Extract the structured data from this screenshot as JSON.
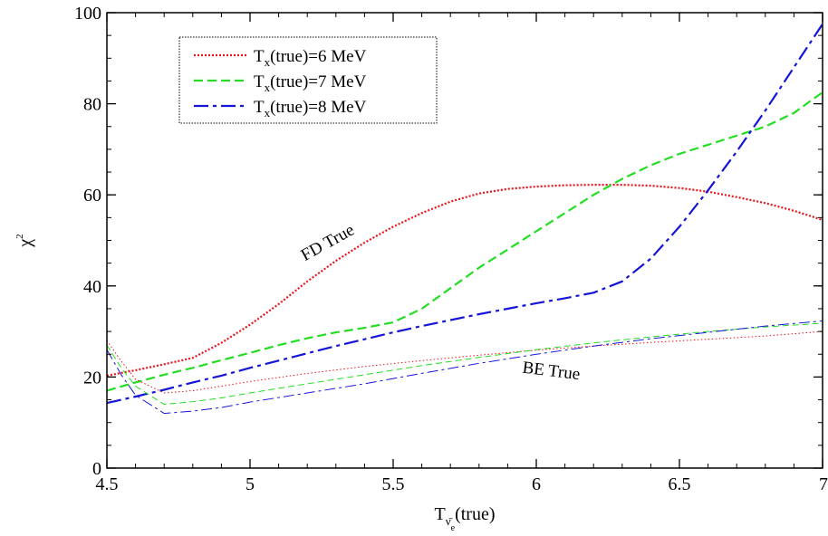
{
  "chart_data": {
    "type": "line",
    "xlabel": {
      "main": "T",
      "sub": "ν̄",
      "subsub": "e",
      "suffix": "(true)"
    },
    "ylabel": {
      "main": "χ",
      "sup": "2"
    },
    "xlim": [
      4.5,
      7
    ],
    "ylim": [
      0,
      100
    ],
    "xticks": [
      4.5,
      5,
      5.5,
      6,
      6.5,
      7
    ],
    "xtick_labels": [
      "4.5",
      "5",
      "5.5",
      "6",
      "6.5",
      "7"
    ],
    "yticks": [
      0,
      20,
      40,
      60,
      80,
      100
    ],
    "ytick_labels": [
      "0",
      "20",
      "40",
      "60",
      "80",
      "100"
    ],
    "grid": false,
    "legend_placement": "top-left",
    "legend": [
      {
        "label_main": "T",
        "label_sub": "x",
        "label_rest": "(true)=6 MeV",
        "color": "#e8141c",
        "dash": "dot"
      },
      {
        "label_main": "T",
        "label_sub": "x",
        "label_rest": "(true)=7 MeV",
        "color": "#22dd22",
        "dash": "dash"
      },
      {
        "label_main": "T",
        "label_sub": "x",
        "label_rest": "(true)=8 MeV",
        "color": "#1515d8",
        "dash": "dashdot"
      }
    ],
    "annotations": [
      {
        "text": "FD True",
        "x": 5.28,
        "y": 48.5,
        "rotate": -29
      },
      {
        "text": "BE True",
        "x": 6.05,
        "y": 20.2,
        "rotate": 7
      }
    ],
    "series": [
      {
        "color": "#e8141c",
        "dash": "dot",
        "weight": "thick",
        "points": [
          [
            4.5,
            20.3
          ],
          [
            4.6,
            21.5
          ],
          [
            4.7,
            22.8
          ],
          [
            4.8,
            24.2
          ],
          [
            4.9,
            27.5
          ],
          [
            5.0,
            31.5
          ],
          [
            5.1,
            36.0
          ],
          [
            5.2,
            41.0
          ],
          [
            5.3,
            45.5
          ],
          [
            5.4,
            49.5
          ],
          [
            5.5,
            53.0
          ],
          [
            5.6,
            56.0
          ],
          [
            5.7,
            58.5
          ],
          [
            5.8,
            60.3
          ],
          [
            5.9,
            61.3
          ],
          [
            6.0,
            61.8
          ],
          [
            6.1,
            62.1
          ],
          [
            6.2,
            62.2
          ],
          [
            6.3,
            62.2
          ],
          [
            6.4,
            62.0
          ],
          [
            6.5,
            61.5
          ],
          [
            6.6,
            60.7
          ],
          [
            6.7,
            59.5
          ],
          [
            6.8,
            58.2
          ],
          [
            6.9,
            56.5
          ],
          [
            7.0,
            54.5
          ]
        ]
      },
      {
        "color": "#22dd22",
        "dash": "dash",
        "weight": "thick",
        "points": [
          [
            4.5,
            17.0
          ],
          [
            4.6,
            18.8
          ],
          [
            4.7,
            20.5
          ],
          [
            4.8,
            22.0
          ],
          [
            4.9,
            23.7
          ],
          [
            5.0,
            25.3
          ],
          [
            5.1,
            27.0
          ],
          [
            5.2,
            28.5
          ],
          [
            5.3,
            29.8
          ],
          [
            5.4,
            30.8
          ],
          [
            5.5,
            32.0
          ],
          [
            5.6,
            35.0
          ],
          [
            5.7,
            39.5
          ],
          [
            5.8,
            44.0
          ],
          [
            5.9,
            48.0
          ],
          [
            6.0,
            52.0
          ],
          [
            6.1,
            56.0
          ],
          [
            6.2,
            60.0
          ],
          [
            6.3,
            63.5
          ],
          [
            6.4,
            66.5
          ],
          [
            6.5,
            69.0
          ],
          [
            6.6,
            71.0
          ],
          [
            6.7,
            73.0
          ],
          [
            6.8,
            75.0
          ],
          [
            6.9,
            78.0
          ],
          [
            7.0,
            82.5
          ]
        ]
      },
      {
        "color": "#1515d8",
        "dash": "dashdot",
        "weight": "thick",
        "points": [
          [
            4.5,
            14.3
          ],
          [
            4.6,
            15.7
          ],
          [
            4.7,
            17.2
          ],
          [
            4.8,
            18.8
          ],
          [
            4.9,
            20.3
          ],
          [
            5.0,
            22.0
          ],
          [
            5.1,
            23.6
          ],
          [
            5.2,
            25.2
          ],
          [
            5.3,
            26.8
          ],
          [
            5.4,
            28.3
          ],
          [
            5.5,
            29.8
          ],
          [
            5.6,
            31.2
          ],
          [
            5.7,
            32.5
          ],
          [
            5.8,
            33.8
          ],
          [
            5.9,
            35.0
          ],
          [
            6.0,
            36.2
          ],
          [
            6.1,
            37.3
          ],
          [
            6.2,
            38.5
          ],
          [
            6.3,
            41.0
          ],
          [
            6.4,
            46.0
          ],
          [
            6.5,
            53.0
          ],
          [
            6.6,
            61.0
          ],
          [
            6.7,
            69.5
          ],
          [
            6.8,
            78.5
          ],
          [
            6.9,
            88.0
          ],
          [
            7.0,
            97.5
          ]
        ]
      },
      {
        "color": "#e8141c",
        "dash": "dot",
        "weight": "thin",
        "points": [
          [
            4.5,
            28.0
          ],
          [
            4.55,
            23.5
          ],
          [
            4.6,
            19.5
          ],
          [
            4.7,
            16.5
          ],
          [
            4.8,
            17.0
          ],
          [
            4.9,
            18.0
          ],
          [
            5.0,
            19.0
          ],
          [
            5.2,
            20.8
          ],
          [
            5.4,
            22.3
          ],
          [
            5.6,
            23.6
          ],
          [
            5.8,
            24.8
          ],
          [
            6.0,
            25.9
          ],
          [
            6.2,
            26.8
          ],
          [
            6.4,
            27.6
          ],
          [
            6.6,
            28.3
          ],
          [
            6.8,
            29.0
          ],
          [
            7.0,
            30.0
          ]
        ]
      },
      {
        "color": "#22dd22",
        "dash": "dash",
        "weight": "thin",
        "points": [
          [
            4.5,
            27.0
          ],
          [
            4.55,
            22.0
          ],
          [
            4.6,
            18.0
          ],
          [
            4.7,
            14.0
          ],
          [
            4.8,
            14.6
          ],
          [
            4.9,
            15.4
          ],
          [
            5.0,
            16.5
          ],
          [
            5.2,
            18.5
          ],
          [
            5.4,
            20.5
          ],
          [
            5.6,
            22.5
          ],
          [
            5.8,
            24.3
          ],
          [
            6.0,
            26.0
          ],
          [
            6.2,
            27.5
          ],
          [
            6.4,
            28.8
          ],
          [
            6.6,
            30.0
          ],
          [
            6.8,
            31.0
          ],
          [
            7.0,
            31.8
          ]
        ]
      },
      {
        "color": "#1515d8",
        "dash": "dashdot",
        "weight": "thin",
        "points": [
          [
            4.5,
            26.0
          ],
          [
            4.55,
            20.5
          ],
          [
            4.6,
            16.0
          ],
          [
            4.7,
            12.0
          ],
          [
            4.8,
            12.5
          ],
          [
            4.9,
            13.3
          ],
          [
            5.0,
            14.5
          ],
          [
            5.2,
            16.5
          ],
          [
            5.4,
            18.5
          ],
          [
            5.6,
            20.8
          ],
          [
            5.8,
            23.0
          ],
          [
            6.0,
            25.0
          ],
          [
            6.2,
            26.8
          ],
          [
            6.4,
            28.4
          ],
          [
            6.6,
            29.8
          ],
          [
            6.8,
            31.2
          ],
          [
            7.0,
            32.3
          ]
        ]
      }
    ]
  }
}
